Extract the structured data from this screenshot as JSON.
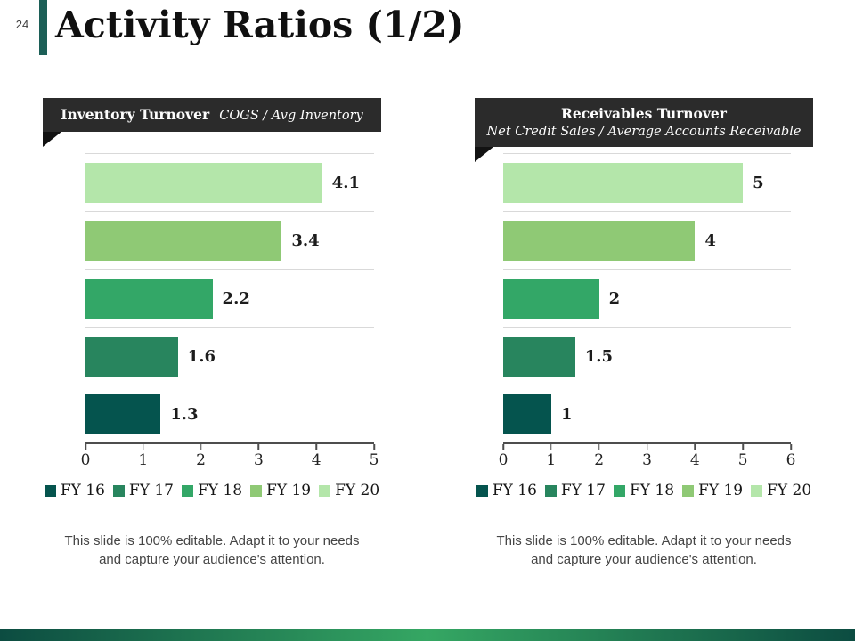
{
  "page": {
    "number": "24",
    "title": "Activity Ratios (1/2)",
    "accent_color": "#1c5f57",
    "header_bg_color": "#2b2b2b",
    "footer_gradient": [
      "#0c4c41",
      "#35a763",
      "#0c4c41"
    ]
  },
  "chart_data": [
    {
      "type": "bar",
      "orientation": "horizontal",
      "title": "Inventory Turnover",
      "subtitle": "COGS / Avg Inventory",
      "categories": [
        "FY 20",
        "FY 19",
        "FY 18",
        "FY 17",
        "FY 16"
      ],
      "values": [
        4.1,
        3.4,
        2.2,
        1.6,
        1.3
      ],
      "value_labels": [
        "4.1",
        "3.4",
        "2.2",
        "1.6",
        "1.3"
      ],
      "bar_colors": [
        "#b4e6aa",
        "#8fc975",
        "#33a767",
        "#28855e",
        "#05544e"
      ],
      "xlim": [
        0,
        5
      ],
      "x_ticks": [
        0,
        1,
        2,
        3,
        4,
        5
      ],
      "grid": "row-separators",
      "legend_position": "bottom",
      "legend": [
        {
          "label": "FY 16",
          "color": "#05544e"
        },
        {
          "label": "FY 17",
          "color": "#28855e"
        },
        {
          "label": "FY 18",
          "color": "#33a767"
        },
        {
          "label": "FY 19",
          "color": "#8fc975"
        },
        {
          "label": "FY 20",
          "color": "#b4e6aa"
        }
      ],
      "caption": "This slide is 100% editable. Adapt it to your needs and capture your audience's attention."
    },
    {
      "type": "bar",
      "orientation": "horizontal",
      "title": "Receivables Turnover",
      "subtitle": "Net Credit Sales / Average Accounts Receivable",
      "categories": [
        "FY 20",
        "FY 19",
        "FY 18",
        "FY 17",
        "FY 16"
      ],
      "values": [
        5,
        4,
        2,
        1.5,
        1
      ],
      "value_labels": [
        "5",
        "4",
        "2",
        "1.5",
        "1"
      ],
      "bar_colors": [
        "#b4e6aa",
        "#8fc975",
        "#33a767",
        "#28855e",
        "#05544e"
      ],
      "xlim": [
        0,
        6
      ],
      "x_ticks": [
        0,
        1,
        2,
        3,
        4,
        5,
        6
      ],
      "grid": "row-separators",
      "legend_position": "bottom",
      "legend": [
        {
          "label": "FY 16",
          "color": "#05544e"
        },
        {
          "label": "FY 17",
          "color": "#28855e"
        },
        {
          "label": "FY 18",
          "color": "#33a767"
        },
        {
          "label": "FY 19",
          "color": "#8fc975"
        },
        {
          "label": "FY 20",
          "color": "#b4e6aa"
        }
      ],
      "caption": "This slide is 100% editable. Adapt it to your needs and capture your audience's attention."
    }
  ]
}
